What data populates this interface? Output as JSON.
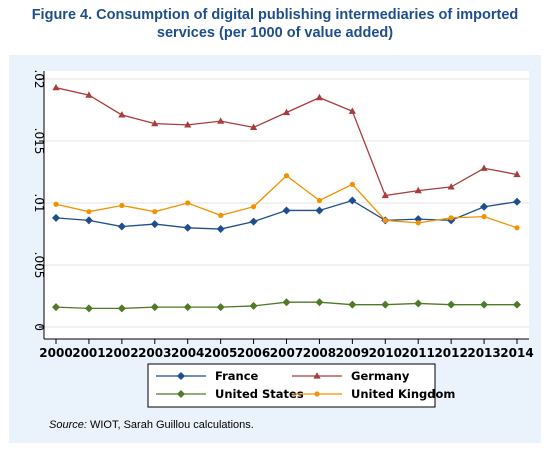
{
  "title": {
    "line1": "Figure 4. Consumption of digital publishing intermediaries of imported",
    "line2": "services (per 1000 of value added)"
  },
  "source": {
    "label": "Source:",
    "text": " WIOT, Sarah Guillou calculations."
  },
  "colors": {
    "panel_background": "#eaf2fb",
    "title": "#1f4e8c"
  },
  "chart_data": {
    "type": "line",
    "x": [
      2000,
      2001,
      2002,
      2003,
      2004,
      2005,
      2006,
      2007,
      2008,
      2009,
      2010,
      2011,
      2012,
      2013,
      2014
    ],
    "x_tick_labels": [
      "2000",
      "2001",
      "2002",
      "2003",
      "2004",
      "2005",
      "2006",
      "2007",
      "2008",
      "2009",
      "2010",
      "2011",
      "2012",
      "2013",
      "2014"
    ],
    "ylim": [
      0,
      0.02
    ],
    "y_ticks": [
      0,
      0.005,
      0.01,
      0.015,
      0.02
    ],
    "y_tick_labels": [
      "0",
      ".005",
      ".01",
      ".015",
      ".02"
    ],
    "grid": "horizontal",
    "legend_position": "bottom",
    "series": [
      {
        "name": "France",
        "color": "#1f4e8c",
        "marker": "diamond",
        "values": [
          0.0088,
          0.0086,
          0.0081,
          0.0083,
          0.008,
          0.0079,
          0.0085,
          0.0094,
          0.0094,
          0.0102,
          0.0086,
          0.0087,
          0.0086,
          0.0097,
          0.0101
        ]
      },
      {
        "name": "Germany",
        "color": "#a93c3c",
        "marker": "triangle",
        "values": [
          0.0193,
          0.0187,
          0.0171,
          0.0164,
          0.0163,
          0.0166,
          0.0161,
          0.0173,
          0.0185,
          0.0174,
          0.0106,
          0.011,
          0.0113,
          0.0128,
          0.0123
        ]
      },
      {
        "name": "United States",
        "color": "#4f7a28",
        "marker": "diamond",
        "values": [
          0.0016,
          0.0015,
          0.0015,
          0.0016,
          0.0016,
          0.0016,
          0.0017,
          0.002,
          0.002,
          0.0018,
          0.0018,
          0.0019,
          0.0018,
          0.0018,
          0.0018
        ]
      },
      {
        "name": "United Kingdom",
        "color": "#f39200",
        "marker": "circle",
        "values": [
          0.0099,
          0.0093,
          0.0098,
          0.0093,
          0.01,
          0.009,
          0.0097,
          0.0122,
          0.0102,
          0.0115,
          0.0086,
          0.0084,
          0.0088,
          0.0089,
          0.008
        ]
      }
    ]
  }
}
